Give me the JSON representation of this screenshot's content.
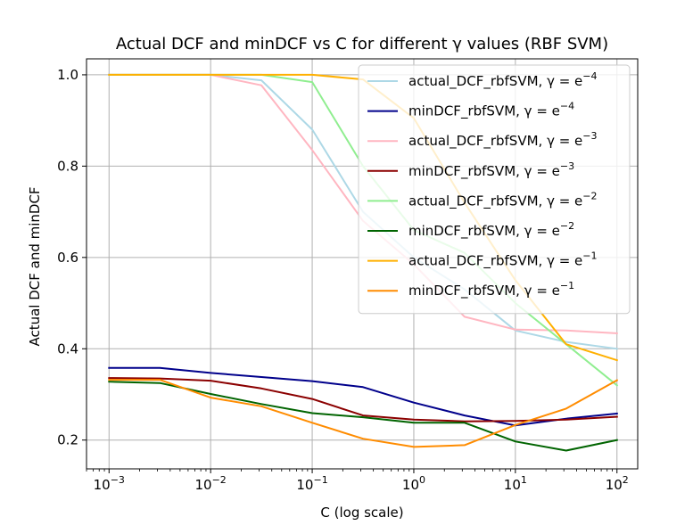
{
  "chart_data": {
    "type": "line",
    "title": "Actual DCF and minDCF vs C for different γ values (RBF SVM)",
    "xlabel": "C (log scale)",
    "ylabel": "Actual DCF and minDCF",
    "x_scale": "log",
    "x": [
      0.001,
      0.003162,
      0.01,
      0.031623,
      0.1,
      0.316228,
      1,
      3.162278,
      10,
      31.622777,
      100
    ],
    "xlim": [
      0.0006,
      160
    ],
    "ylim": [
      0.137,
      1.035
    ],
    "x_ticks": [
      {
        "value": 0.001,
        "mantissa": "10",
        "exponent": "−3"
      },
      {
        "value": 0.01,
        "mantissa": "10",
        "exponent": "−2"
      },
      {
        "value": 0.1,
        "mantissa": "10",
        "exponent": "−1"
      },
      {
        "value": 1,
        "mantissa": "10",
        "exponent": "0"
      },
      {
        "value": 10,
        "mantissa": "10",
        "exponent": "1"
      },
      {
        "value": 100,
        "mantissa": "10",
        "exponent": "2"
      }
    ],
    "y_ticks": [
      {
        "value": 0.2,
        "label": "0.2"
      },
      {
        "value": 0.4,
        "label": "0.4"
      },
      {
        "value": 0.6,
        "label": "0.6"
      },
      {
        "value": 0.8,
        "label": "0.8"
      },
      {
        "value": 1.0,
        "label": "1.0"
      }
    ],
    "grid": true,
    "legend_position": "upper-right",
    "series": [
      {
        "name": "actual_DCF_rbfSVM, γ = e",
        "exp": "−4",
        "color": "#add8e6",
        "values": [
          1.0,
          1.0,
          1.0,
          0.988,
          0.88,
          0.7,
          0.6,
          0.53,
          0.44,
          0.415,
          0.4
        ]
      },
      {
        "name": "minDCF_rbfSVM, γ = e",
        "exp": "−4",
        "color": "#00008b",
        "values": [
          0.358,
          0.358,
          0.347,
          0.338,
          0.329,
          0.316,
          0.282,
          0.254,
          0.232,
          0.247,
          0.258
        ]
      },
      {
        "name": "actual_DCF_rbfSVM, γ = e",
        "exp": "−3",
        "color": "#ffb6c1",
        "values": [
          1.0,
          1.0,
          1.0,
          0.977,
          0.835,
          0.68,
          0.585,
          0.47,
          0.442,
          0.44,
          0.434
        ]
      },
      {
        "name": "minDCF_rbfSVM, γ = e",
        "exp": "−3",
        "color": "#8b0000",
        "values": [
          0.336,
          0.335,
          0.33,
          0.313,
          0.29,
          0.254,
          0.245,
          0.241,
          0.242,
          0.245,
          0.251
        ]
      },
      {
        "name": "actual_DCF_rbfSVM, γ = e",
        "exp": "−2",
        "color": "#90ee90",
        "values": [
          1.0,
          1.0,
          1.0,
          1.0,
          0.984,
          0.8,
          0.66,
          0.61,
          0.5,
          0.41,
          0.32
        ]
      },
      {
        "name": "minDCF_rbfSVM, γ = e",
        "exp": "−2",
        "color": "#006400",
        "values": [
          0.328,
          0.325,
          0.301,
          0.279,
          0.259,
          0.25,
          0.238,
          0.238,
          0.197,
          0.177,
          0.2
        ]
      },
      {
        "name": "actual_DCF_rbfSVM, γ = e",
        "exp": "−1",
        "color": "#ffb000",
        "values": [
          1.0,
          1.0,
          1.0,
          1.0,
          1.0,
          0.99,
          0.905,
          0.72,
          0.55,
          0.41,
          0.375
        ]
      },
      {
        "name": "minDCF_rbfSVM, γ = e",
        "exp": "−1",
        "color": "#ff8c00",
        "values": [
          0.332,
          0.332,
          0.293,
          0.274,
          0.238,
          0.203,
          0.185,
          0.189,
          0.233,
          0.269,
          0.331
        ]
      }
    ]
  }
}
